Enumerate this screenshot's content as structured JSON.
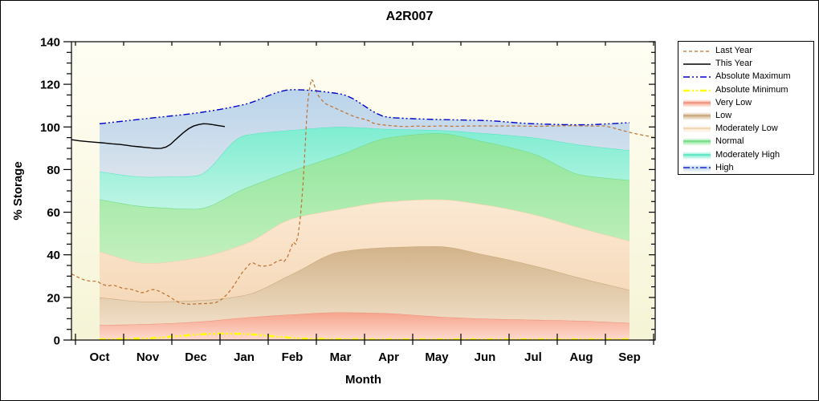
{
  "chart_data": {
    "type": "area",
    "title": "A2R007",
    "xlabel": "Month",
    "ylabel": "% Storage",
    "ylim": [
      0,
      140
    ],
    "ytick_step": 20,
    "yminor_step": 5,
    "grid": false,
    "legend_position": "right",
    "plot_bg": [
      "#FFFEF4",
      "#F6F4D6"
    ],
    "categories": [
      "Oct",
      "Nov",
      "Dec",
      "Jan",
      "Feb",
      "Mar",
      "Apr",
      "May",
      "Jun",
      "Jul",
      "Aug",
      "Sep"
    ],
    "bands": [
      {
        "name": "Very Low",
        "key": "very_low",
        "color_top": "#F5A48C",
        "color_bottom": "#FDDACE",
        "edge": "#F0907A",
        "top": [
          7,
          7.5,
          8.5,
          10.5,
          12,
          13,
          12.5,
          11,
          10,
          9.5,
          9,
          8
        ]
      },
      {
        "name": "Low",
        "key": "low",
        "color_top": "#D2B38A",
        "color_bottom": "#F0DEC6",
        "edge": "#C8A678",
        "top": [
          20,
          18,
          18.5,
          21,
          31,
          41.5,
          43.5,
          44,
          40,
          35,
          29,
          23.5
        ]
      },
      {
        "name": "Moderately Low",
        "key": "moderately_low",
        "color_top": "#FBE9D3",
        "color_bottom": "#F6D9BA",
        "edge": "#EFD0A9",
        "top": [
          41.5,
          36,
          38.5,
          45,
          57,
          61.5,
          65,
          66,
          63.5,
          59,
          52.5,
          46.5
        ]
      },
      {
        "name": "Normal",
        "key": "normal",
        "color_top": "#8EE59B",
        "color_bottom": "#C4F0BE",
        "edge": "#6EDC81",
        "top": [
          66,
          62.5,
          61.5,
          71,
          79.5,
          87,
          95,
          97,
          93,
          87.5,
          77.5,
          75
        ]
      },
      {
        "name": "Moderately High",
        "key": "moderately_high",
        "color_top": "#7EEDD1",
        "color_bottom": "#BFF4E4",
        "edge": "#52E6C0",
        "top": [
          79,
          76.5,
          77,
          96,
          98.5,
          100,
          99,
          98.5,
          97,
          95,
          91.5,
          89
        ]
      },
      {
        "name": "High",
        "key": "high",
        "color_top": "#BAD4EB",
        "color_bottom": "#D9E3EC",
        "edge": null,
        "top": [
          101.5,
          104,
          106.5,
          110.5,
          117.5,
          115.5,
          104.5,
          103.5,
          103,
          101.5,
          101,
          102
        ]
      }
    ],
    "lines": [
      {
        "name": "Last Year",
        "key": "last_year",
        "color": "#C0702F",
        "style": "dash",
        "width": 1.2,
        "points": [
          [
            -0.58,
            31
          ],
          [
            -0.45,
            29.5
          ],
          [
            -0.32,
            28.2
          ],
          [
            -0.18,
            27.6
          ],
          [
            -0.05,
            27.6
          ],
          [
            0.05,
            26.2
          ],
          [
            0.17,
            25.4
          ],
          [
            0.28,
            25.8
          ],
          [
            0.4,
            25
          ],
          [
            0.48,
            24.2
          ],
          [
            0.62,
            24
          ],
          [
            0.75,
            23.2
          ],
          [
            0.85,
            22.2
          ],
          [
            0.95,
            22.4
          ],
          [
            1.05,
            23.6
          ],
          [
            1.15,
            23.7
          ],
          [
            1.25,
            22.8
          ],
          [
            1.35,
            21.6
          ],
          [
            1.45,
            20.4
          ],
          [
            1.55,
            18.8
          ],
          [
            1.65,
            17.6
          ],
          [
            1.77,
            17
          ],
          [
            1.88,
            16.8
          ],
          [
            2.02,
            17
          ],
          [
            2.15,
            17.1
          ],
          [
            2.28,
            17.2
          ],
          [
            2.42,
            17.6
          ],
          [
            2.53,
            19
          ],
          [
            2.65,
            21.5
          ],
          [
            2.77,
            25
          ],
          [
            2.87,
            28.5
          ],
          [
            2.97,
            32
          ],
          [
            3.05,
            34
          ],
          [
            3.12,
            35.8
          ],
          [
            3.18,
            36.3
          ],
          [
            3.27,
            35.2
          ],
          [
            3.37,
            34.6
          ],
          [
            3.47,
            34.8
          ],
          [
            3.57,
            35.3
          ],
          [
            3.67,
            36.8
          ],
          [
            3.77,
            37.6
          ],
          [
            3.83,
            36.8
          ],
          [
            3.9,
            39
          ],
          [
            3.97,
            43
          ],
          [
            4.02,
            46
          ],
          [
            4.07,
            45
          ],
          [
            4.12,
            49
          ],
          [
            4.17,
            58
          ],
          [
            4.22,
            72
          ],
          [
            4.27,
            92
          ],
          [
            4.3,
            105
          ],
          [
            4.33,
            113.5
          ],
          [
            4.37,
            119.5
          ],
          [
            4.4,
            122.3
          ],
          [
            4.43,
            121.5
          ],
          [
            4.48,
            118
          ],
          [
            4.53,
            115
          ],
          [
            4.6,
            113
          ],
          [
            4.67,
            111.2
          ],
          [
            4.75,
            110.2
          ],
          [
            4.85,
            109.3
          ],
          [
            4.95,
            108.2
          ],
          [
            5.05,
            107.2
          ],
          [
            5.15,
            106.2
          ],
          [
            5.25,
            105.2
          ],
          [
            5.37,
            104.3
          ],
          [
            5.48,
            103.7
          ],
          [
            5.58,
            103
          ],
          [
            5.68,
            101.8
          ],
          [
            5.8,
            101.2
          ],
          [
            5.92,
            100.9
          ],
          [
            6.05,
            100.6
          ],
          [
            6.2,
            100.3
          ],
          [
            6.37,
            100.2
          ],
          [
            6.58,
            100.4
          ],
          [
            6.82,
            100.3
          ],
          [
            7.08,
            100.5
          ],
          [
            7.35,
            100.3
          ],
          [
            7.62,
            100.4
          ],
          [
            7.92,
            100.5
          ],
          [
            8.22,
            100.4
          ],
          [
            8.52,
            100.5
          ],
          [
            8.82,
            100.4
          ],
          [
            9.12,
            100.3
          ],
          [
            9.42,
            100.5
          ],
          [
            9.72,
            100.6
          ],
          [
            10.02,
            100.5
          ],
          [
            10.32,
            100.4
          ],
          [
            10.48,
            100.5
          ],
          [
            10.62,
            99.8
          ],
          [
            10.75,
            99
          ],
          [
            10.88,
            98.2
          ],
          [
            11.05,
            97.2
          ],
          [
            11.22,
            96.4
          ],
          [
            11.38,
            95.7
          ],
          [
            11.53,
            95
          ]
        ]
      },
      {
        "name": "This Year",
        "key": "this_year",
        "color": "#000000",
        "style": "solid",
        "width": 1.4,
        "points": [
          [
            -0.58,
            94
          ],
          [
            -0.42,
            93.5
          ],
          [
            -0.25,
            93.1
          ],
          [
            -0.08,
            92.8
          ],
          [
            0.08,
            92.5
          ],
          [
            0.25,
            92.1
          ],
          [
            0.42,
            91.8
          ],
          [
            0.55,
            91.4
          ],
          [
            0.68,
            91
          ],
          [
            0.82,
            90.7
          ],
          [
            0.95,
            90.4
          ],
          [
            1.08,
            90.1
          ],
          [
            1.18,
            89.9
          ],
          [
            1.28,
            90
          ],
          [
            1.38,
            90.6
          ],
          [
            1.47,
            91.8
          ],
          [
            1.55,
            93.5
          ],
          [
            1.65,
            95.5
          ],
          [
            1.75,
            97.5
          ],
          [
            1.85,
            99.2
          ],
          [
            1.95,
            100.4
          ],
          [
            2.05,
            101.1
          ],
          [
            2.15,
            101.5
          ],
          [
            2.25,
            101.4
          ],
          [
            2.35,
            101.1
          ],
          [
            2.45,
            100.7
          ],
          [
            2.53,
            100.4
          ],
          [
            2.6,
            100.2
          ]
        ]
      },
      {
        "name": "Absolute Maximum",
        "key": "absolute_maximum",
        "color": "#0000CD",
        "style": "dashdot",
        "width": 1.4,
        "from_band": "High"
      },
      {
        "name": "Absolute Minimum",
        "key": "absolute_minimum",
        "color": "#FFFF00",
        "style": "dashdot",
        "width": 2.6,
        "points": [
          [
            0,
            0.3
          ],
          [
            0.28,
            0.4
          ],
          [
            0.58,
            0.5
          ],
          [
            0.87,
            0.7
          ],
          [
            1.12,
            0.9
          ],
          [
            1.37,
            1.3
          ],
          [
            1.62,
            1.8
          ],
          [
            1.87,
            2.3
          ],
          [
            2.12,
            2.7
          ],
          [
            2.33,
            2.9
          ],
          [
            2.53,
            3
          ],
          [
            2.75,
            3
          ],
          [
            2.95,
            2.9
          ],
          [
            3.15,
            2.7
          ],
          [
            3.35,
            2.3
          ],
          [
            3.55,
            1.9
          ],
          [
            3.75,
            1.5
          ],
          [
            3.95,
            1.1
          ],
          [
            4.15,
            0.8
          ],
          [
            4.37,
            0.6
          ],
          [
            4.62,
            0.5
          ],
          [
            4.95,
            0.4
          ],
          [
            5.45,
            0.35
          ],
          [
            6.12,
            0.3
          ],
          [
            6.95,
            0.3
          ],
          [
            7.95,
            0.3
          ],
          [
            8.95,
            0.3
          ],
          [
            9.95,
            0.3
          ],
          [
            11,
            0.35
          ]
        ]
      }
    ],
    "legend": {
      "items": [
        {
          "label": "Last Year",
          "ref": "last_year",
          "kind": "line"
        },
        {
          "label": "This Year",
          "ref": "this_year",
          "kind": "line"
        },
        {
          "label": "Absolute Maximum",
          "ref": "absolute_maximum",
          "kind": "line"
        },
        {
          "label": "Absolute Minimum",
          "ref": "absolute_minimum",
          "kind": "line"
        },
        {
          "label": "Very Low",
          "ref": "very_low",
          "kind": "band"
        },
        {
          "label": "Low",
          "ref": "low",
          "kind": "band"
        },
        {
          "label": "Moderately Low",
          "ref": "moderately_low",
          "kind": "band"
        },
        {
          "label": "Normal",
          "ref": "normal",
          "kind": "band"
        },
        {
          "label": "Moderately High",
          "ref": "moderately_high",
          "kind": "band"
        },
        {
          "label": "High",
          "ref": "high",
          "kind": "band",
          "overlay_line": "absolute_maximum"
        }
      ]
    }
  }
}
